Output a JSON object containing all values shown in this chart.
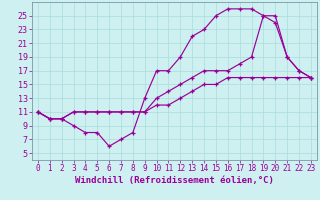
{
  "xlabel": "Windchill (Refroidissement éolien,°C)",
  "bg_color": "#cef0f0",
  "line_color": "#990099",
  "grid_color": "#aadddd",
  "spine_color": "#7799aa",
  "xlim": [
    -0.5,
    23.5
  ],
  "ylim": [
    4,
    27
  ],
  "xticks": [
    0,
    1,
    2,
    3,
    4,
    5,
    6,
    7,
    8,
    9,
    10,
    11,
    12,
    13,
    14,
    15,
    16,
    17,
    18,
    19,
    20,
    21,
    22,
    23
  ],
  "yticks": [
    5,
    7,
    9,
    11,
    13,
    15,
    17,
    19,
    21,
    23,
    25
  ],
  "line1_x": [
    0,
    1,
    2,
    3,
    4,
    5,
    6,
    7,
    8,
    9,
    10,
    11,
    12,
    13,
    14,
    15,
    16,
    17,
    18,
    19,
    20,
    21,
    22,
    23
  ],
  "line1_y": [
    11,
    10,
    10,
    9,
    8,
    8,
    6,
    7,
    8,
    13,
    17,
    17,
    19,
    22,
    23,
    25,
    26,
    26,
    26,
    25,
    25,
    19,
    17,
    16
  ],
  "line2_x": [
    0,
    1,
    2,
    3,
    4,
    5,
    6,
    7,
    8,
    9,
    10,
    11,
    12,
    13,
    14,
    15,
    16,
    17,
    18,
    19,
    20,
    21,
    22,
    23
  ],
  "line2_y": [
    11,
    10,
    10,
    11,
    11,
    11,
    11,
    11,
    11,
    11,
    13,
    14,
    15,
    16,
    17,
    17,
    17,
    18,
    19,
    25,
    24,
    19,
    17,
    16
  ],
  "line3_x": [
    0,
    1,
    2,
    3,
    4,
    5,
    6,
    7,
    8,
    9,
    10,
    11,
    12,
    13,
    14,
    15,
    16,
    17,
    18,
    19,
    20,
    21,
    22,
    23
  ],
  "line3_y": [
    11,
    10,
    10,
    11,
    11,
    11,
    11,
    11,
    11,
    11,
    12,
    12,
    13,
    14,
    15,
    15,
    16,
    16,
    16,
    16,
    16,
    16,
    16,
    16
  ],
  "xlabel_fontsize": 6.5,
  "tick_fontsize": 5.5
}
